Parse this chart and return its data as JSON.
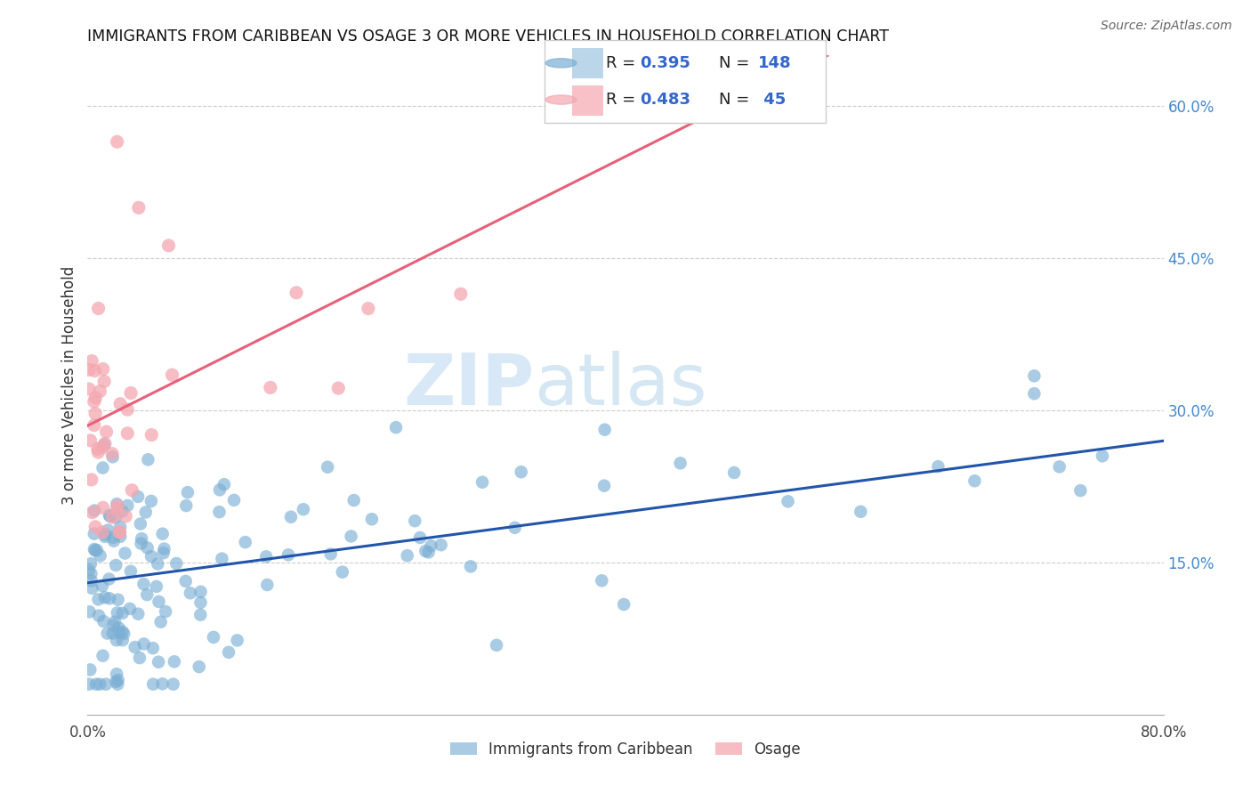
{
  "title": "IMMIGRANTS FROM CARIBBEAN VS OSAGE 3 OR MORE VEHICLES IN HOUSEHOLD CORRELATION CHART",
  "source": "Source: ZipAtlas.com",
  "ylabel": "3 or more Vehicles in Household",
  "xlim": [
    0.0,
    0.8
  ],
  "ylim": [
    0.0,
    0.65
  ],
  "yticks_right": [
    0.15,
    0.3,
    0.45,
    0.6
  ],
  "ytick_right_labels": [
    "15.0%",
    "30.0%",
    "45.0%",
    "60.0%"
  ],
  "legend1_label": "Immigrants from Caribbean",
  "legend2_label": "Osage",
  "R1": 0.395,
  "N1": 148,
  "R2": 0.483,
  "N2": 45,
  "color_blue": "#7BAFD4",
  "color_pink": "#F4A7B0",
  "color_blue_line": "#2255AA",
  "color_pink_line": "#E8607A",
  "blue_line_x0": 0.0,
  "blue_line_y0": 0.13,
  "blue_line_x1": 0.8,
  "blue_line_y1": 0.27,
  "pink_line_x0": 0.0,
  "pink_line_y0": 0.285,
  "pink_line_x1": 0.55,
  "pink_line_y1": 0.65,
  "watermark_zip": "ZIP",
  "watermark_atlas": "atlas"
}
